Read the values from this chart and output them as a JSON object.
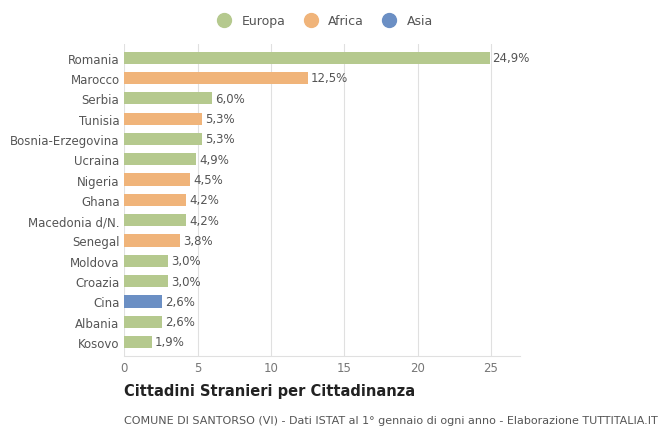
{
  "countries": [
    "Romania",
    "Marocco",
    "Serbia",
    "Tunisia",
    "Bosnia-Erzegovina",
    "Ucraina",
    "Nigeria",
    "Ghana",
    "Macedonia d/N.",
    "Senegal",
    "Moldova",
    "Croazia",
    "Cina",
    "Albania",
    "Kosovo"
  ],
  "values": [
    24.9,
    12.5,
    6.0,
    5.3,
    5.3,
    4.9,
    4.5,
    4.2,
    4.2,
    3.8,
    3.0,
    3.0,
    2.6,
    2.6,
    1.9
  ],
  "labels": [
    "24,9%",
    "12,5%",
    "6,0%",
    "5,3%",
    "5,3%",
    "4,9%",
    "4,5%",
    "4,2%",
    "4,2%",
    "3,8%",
    "3,0%",
    "3,0%",
    "2,6%",
    "2,6%",
    "1,9%"
  ],
  "continents": [
    "Europa",
    "Africa",
    "Europa",
    "Africa",
    "Europa",
    "Europa",
    "Africa",
    "Africa",
    "Europa",
    "Africa",
    "Europa",
    "Europa",
    "Asia",
    "Europa",
    "Europa"
  ],
  "colors": {
    "Europa": "#b5c98e",
    "Africa": "#f0b47a",
    "Asia": "#6b8fc4"
  },
  "xlim": [
    0,
    27
  ],
  "xticks": [
    0,
    5,
    10,
    15,
    20,
    25
  ],
  "title": "Cittadini Stranieri per Cittadinanza",
  "subtitle": "COMUNE DI SANTORSO (VI) - Dati ISTAT al 1° gennaio di ogni anno - Elaborazione TUTTITALIA.IT",
  "background_color": "#ffffff",
  "plot_bg_color": "#ffffff",
  "grid_color": "#e0e0e0",
  "bar_height": 0.6,
  "title_fontsize": 10.5,
  "subtitle_fontsize": 8,
  "tick_fontsize": 8.5,
  "label_fontsize": 8.5,
  "legend_fontsize": 9
}
